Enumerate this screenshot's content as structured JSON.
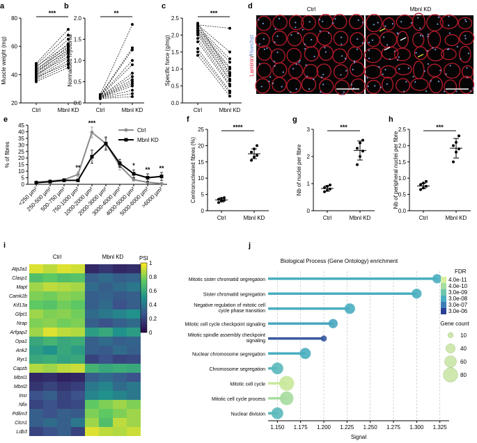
{
  "panels": {
    "a": {
      "label": "a",
      "ylabel": "Muscle weight (mg)",
      "yticks": [
        "20",
        "40",
        "60",
        "80"
      ],
      "ylim": [
        20,
        80
      ],
      "groups": [
        "Ctrl",
        "Mbnl KD"
      ],
      "sig": "***",
      "pairs": [
        [
          35,
          45
        ],
        [
          36,
          47
        ],
        [
          37,
          50
        ],
        [
          38,
          52
        ],
        [
          38,
          48
        ],
        [
          39,
          55
        ],
        [
          40,
          56
        ],
        [
          40,
          53
        ],
        [
          41,
          58
        ],
        [
          42,
          57
        ],
        [
          42,
          60
        ],
        [
          43,
          62
        ],
        [
          44,
          59
        ],
        [
          45,
          65
        ],
        [
          46,
          61
        ],
        [
          47,
          68
        ],
        [
          48,
          72
        ]
      ]
    },
    "b": {
      "label": "b",
      "ylabel": "Normalised myotonia",
      "yticks": [
        "0.0",
        "0.5",
        "1.0",
        "1.5",
        "2.0"
      ],
      "ylim": [
        0,
        2
      ],
      "groups": [
        "Ctrl",
        "Mbnl KD"
      ],
      "sig": "**",
      "pairs": [
        [
          0.1,
          0.15
        ],
        [
          0.11,
          0.22
        ],
        [
          0.12,
          0.3
        ],
        [
          0.12,
          0.4
        ],
        [
          0.13,
          0.45
        ],
        [
          0.13,
          0.5
        ],
        [
          0.14,
          0.55
        ],
        [
          0.15,
          0.62
        ],
        [
          0.15,
          0.7
        ],
        [
          0.16,
          0.9
        ],
        [
          0.17,
          1.0
        ],
        [
          0.17,
          1.25
        ],
        [
          0.18,
          1.3
        ],
        [
          0.2,
          1.85
        ]
      ]
    },
    "c": {
      "label": "c",
      "ylabel": "Specific force (g/mg)",
      "yticks": [
        "0.0",
        "0.5",
        "1.0",
        "1.5",
        "2.0",
        "2.5"
      ],
      "ylim": [
        0,
        2.5
      ],
      "groups": [
        "Ctrl",
        "Mbnl KD"
      ],
      "sig": "***",
      "pairs": [
        [
          1.4,
          0.2
        ],
        [
          1.5,
          0.3
        ],
        [
          1.6,
          0.35
        ],
        [
          1.8,
          0.5
        ],
        [
          1.9,
          0.55
        ],
        [
          2.0,
          0.65
        ],
        [
          2.05,
          0.7
        ],
        [
          2.1,
          0.8
        ],
        [
          2.1,
          0.9
        ],
        [
          2.15,
          1.0
        ],
        [
          2.2,
          1.05
        ],
        [
          2.2,
          1.2
        ],
        [
          2.25,
          1.3
        ],
        [
          2.3,
          1.5
        ],
        [
          2.3,
          2.2
        ],
        [
          2.35,
          0.85
        ]
      ]
    },
    "d": {
      "label": "d",
      "left_title": "Ctrl",
      "right_title": "Mbnl KD",
      "stain1": "Laminin",
      "sep": "/",
      "stain2": "Hoechst",
      "stain1_color": "#e8233a",
      "stain2_color": "#6b8fd6"
    },
    "e": {
      "label": "e",
      "ylabel": "% of fibres",
      "yticks": [
        "0",
        "5",
        "10",
        "15",
        "20",
        "25",
        "30",
        "35",
        "40",
        "45"
      ],
      "ylim": [
        0,
        45
      ],
      "categories": [
        "<250 µm²",
        "250-500 µm²",
        "500-750 µm²",
        "750-1000 µm²",
        "1000-2000 µm²",
        "2000-3000 µm²",
        "3000-4000 µm²",
        "4000-5000 µm²",
        "5000-6000 µm²",
        ">6000 µm²"
      ],
      "series": [
        {
          "name": "Ctrl",
          "color": "#8c8c8c",
          "values": [
            1.5,
            2.5,
            3.5,
            7.5,
            39.5,
            31,
            14,
            3.5,
            1.5,
            0.5
          ],
          "err": [
            0.5,
            0.8,
            1,
            2,
            4,
            4,
            3,
            1,
            0.5,
            0.3
          ]
        },
        {
          "name": "Mbnl KD",
          "color": "#000000",
          "values": [
            1.2,
            2,
            3,
            3,
            21,
            31,
            16,
            8,
            5,
            6
          ],
          "err": [
            0.5,
            0.8,
            1,
            1,
            5,
            5,
            3,
            3,
            3,
            3
          ]
        }
      ],
      "sigs": [
        "",
        "",
        "",
        "**",
        "***",
        "",
        "",
        "*",
        "**",
        "**"
      ]
    },
    "f": {
      "label": "f",
      "ylabel": "Centronucleated fibres (%)",
      "yticks": [
        "0",
        "5",
        "10",
        "15",
        "20",
        "25"
      ],
      "ylim": [
        0,
        25
      ],
      "groups": [
        "Ctrl",
        "Mbnl KD"
      ],
      "sig": "****",
      "g1": [
        2.5,
        3,
        3.2,
        3.5,
        3.8,
        4
      ],
      "g2": [
        15.5,
        16.5,
        17,
        18,
        19,
        20
      ],
      "m1": 3.3,
      "s1": 0.6,
      "m2": 17.5,
      "s2": 1.5
    },
    "g": {
      "label": "g",
      "ylabel": "Nb of nuclei per fibre",
      "yticks": [
        "0",
        "1",
        "2",
        "3"
      ],
      "ylim": [
        0,
        3
      ],
      "groups": [
        "Ctrl",
        "Mbnl KD"
      ],
      "sig": "***",
      "g1": [
        0.7,
        0.75,
        0.8,
        0.85,
        0.9,
        0.95
      ],
      "g2": [
        1.7,
        2.0,
        2.2,
        2.3,
        2.5,
        2.6
      ],
      "m1": 0.82,
      "s1": 0.1,
      "m2": 2.22,
      "s2": 0.35
    },
    "h": {
      "label": "h",
      "ylabel": "Nb of peripheral nuclei per fibre",
      "yticks": [
        "0.0",
        "0.5",
        "1.0",
        "1.5",
        "2.0",
        "2.5"
      ],
      "ylim": [
        0,
        2.5
      ],
      "groups": [
        "Ctrl",
        "Mbnl KD"
      ],
      "sig": "***",
      "g1": [
        0.65,
        0.7,
        0.75,
        0.8,
        0.85,
        0.9
      ],
      "g2": [
        1.5,
        1.8,
        1.9,
        2.0,
        2.1,
        2.3
      ],
      "m1": 0.76,
      "s1": 0.08,
      "m2": 1.92,
      "s2": 0.3
    },
    "i": {
      "label": "i",
      "group1": "Ctrl",
      "group2": "Mbnl KD",
      "legend_title": "PSI",
      "legend_ticks": [
        "0",
        "0.2",
        "0.4",
        "0.6",
        "0.8",
        "1"
      ],
      "genes": [
        "Atp2a1",
        "Clasp1",
        "Mapt",
        "Camk2b",
        "Kif13a",
        "Gfpt1",
        "Nrap",
        "Arfgap2",
        "Opa1",
        "Ank2",
        "Ryr1",
        "Capzb",
        "Mbnl1",
        "Mbnl2",
        "Insr",
        "Nfix",
        "Pdlim3",
        "Clcn1",
        "Ldb3"
      ],
      "values": [
        [
          0.95,
          0.9,
          0.95,
          0.93,
          0.1,
          0.15,
          0.1,
          0.12
        ],
        [
          0.7,
          0.75,
          0.7,
          0.72,
          0.3,
          0.35,
          0.3,
          0.32
        ],
        [
          0.85,
          0.9,
          0.88,
          0.86,
          0.35,
          0.3,
          0.35,
          0.4
        ],
        [
          0.8,
          0.78,
          0.82,
          0.8,
          0.3,
          0.32,
          0.28,
          0.3
        ],
        [
          0.75,
          0.72,
          0.78,
          0.74,
          0.3,
          0.35,
          0.25,
          0.3
        ],
        [
          0.85,
          0.8,
          0.82,
          0.78,
          0.35,
          0.4,
          0.45,
          0.5
        ],
        [
          0.8,
          0.82,
          0.78,
          0.8,
          0.3,
          0.25,
          0.3,
          0.35
        ],
        [
          0.85,
          0.95,
          0.9,
          0.88,
          0.55,
          0.6,
          0.5,
          0.55
        ],
        [
          0.6,
          0.65,
          0.6,
          0.62,
          0.3,
          0.35,
          0.3,
          0.32
        ],
        [
          0.55,
          0.5,
          0.6,
          0.55,
          0.3,
          0.28,
          0.35,
          0.3
        ],
        [
          0.6,
          0.62,
          0.58,
          0.6,
          0.2,
          0.25,
          0.2,
          0.22
        ],
        [
          0.88,
          0.85,
          0.9,
          0.92,
          0.65,
          0.6,
          0.62,
          0.6
        ],
        [
          0.1,
          0.12,
          0.08,
          0.1,
          0.3,
          0.35,
          0.3,
          0.25
        ],
        [
          0.15,
          0.2,
          0.15,
          0.18,
          0.4,
          0.45,
          0.35,
          0.4
        ],
        [
          0.25,
          0.3,
          0.2,
          0.25,
          0.45,
          0.5,
          0.45,
          0.4
        ],
        [
          0.2,
          0.25,
          0.2,
          0.22,
          0.75,
          0.8,
          0.85,
          0.8
        ],
        [
          0.3,
          0.25,
          0.3,
          0.28,
          0.8,
          0.75,
          0.8,
          0.85
        ],
        [
          0.3,
          0.35,
          0.3,
          0.4,
          0.85,
          0.7,
          0.9,
          0.85
        ],
        [
          0.2,
          0.25,
          0.3,
          0.2,
          0.95,
          0.9,
          0.88,
          0.92
        ]
      ]
    },
    "j": {
      "label": "j",
      "title": "Biological Process (Gene Ontology) enrichment",
      "xlabel": "Signal",
      "xticks": [
        "1.150",
        "1.175",
        "1.200",
        "1.225",
        "1.250",
        "1.275",
        "1.300",
        "1.325"
      ],
      "xlim": [
        1.14,
        1.335
      ],
      "legend_fdr_title": "FDR",
      "fdr_ticks": [
        "4.0e-11",
        "4.0e-10",
        "3.0e-09",
        "3.0e-08",
        "3.0e-07",
        "3.0e-06"
      ],
      "legend_size_title": "Gene count",
      "size_ticks": [
        "10",
        "40",
        "60",
        "80"
      ],
      "terms": [
        {
          "name": "Mitotic sister chromatid segregation",
          "signal": 1.322,
          "count": 40,
          "color": "#4aaec0"
        },
        {
          "name": "Sister chromatid segregation",
          "signal": 1.3,
          "count": 45,
          "color": "#4aaec0"
        },
        {
          "name": "Negative regulation of mitotic cell cycle phase transition",
          "signal": 1.228,
          "count": 50,
          "color": "#4aaec0"
        },
        {
          "name": "Mitotic cell cycle checkpoint signaling",
          "signal": 1.21,
          "count": 40,
          "color": "#48a7c0"
        },
        {
          "name": "Mitotic spindle assembly checkpoint signaling",
          "signal": 1.2,
          "count": 15,
          "color": "#3a5aa0"
        },
        {
          "name": "Nuclear chromosome segregation",
          "signal": 1.18,
          "count": 55,
          "color": "#4aaec0"
        },
        {
          "name": "Chromosome segregation",
          "signal": 1.15,
          "count": 60,
          "color": "#5ab8ba"
        },
        {
          "name": "Mitotic cell cycle",
          "signal": 1.16,
          "count": 85,
          "color": "#c9e89a"
        },
        {
          "name": "Mitotic cell cycle process",
          "signal": 1.16,
          "count": 75,
          "color": "#a6dca0"
        },
        {
          "name": "Nuclear division",
          "signal": 1.15,
          "count": 60,
          "color": "#5ab8ba"
        }
      ]
    }
  }
}
